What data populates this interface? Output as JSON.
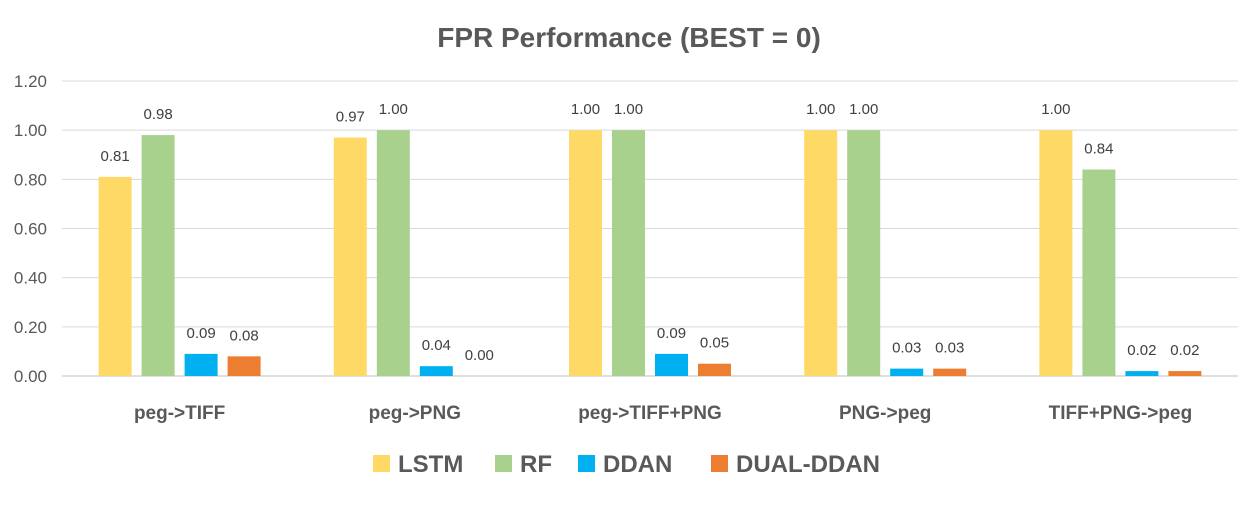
{
  "chart_data": {
    "type": "bar",
    "title": "FPR Performance (BEST = 0)",
    "xlabel": "",
    "ylabel": "",
    "ylim": [
      0,
      1.2
    ],
    "yticks": [
      "0.00",
      "0.20",
      "0.40",
      "0.60",
      "0.80",
      "1.00",
      "1.20"
    ],
    "grid": true,
    "legend_position": "bottom",
    "categories": [
      "peg->TIFF",
      "peg->PNG",
      "peg->TIFF+PNG",
      "PNG->peg",
      "TIFF+PNG->peg"
    ],
    "series": [
      {
        "name": "LSTM",
        "color": "#FFD966",
        "values": [
          0.81,
          0.97,
          1.0,
          1.0,
          1.0
        ],
        "labels": [
          "0.81",
          "0.97",
          "1.00",
          "1.00",
          "1.00"
        ]
      },
      {
        "name": "RF",
        "color": "#A9D18E",
        "values": [
          0.98,
          1.0,
          1.0,
          1.0,
          0.84
        ],
        "labels": [
          "0.98",
          "1.00",
          "1.00",
          "1.00",
          "0.84"
        ]
      },
      {
        "name": "DDAN",
        "color": "#00B0F0",
        "values": [
          0.09,
          0.04,
          0.09,
          0.03,
          0.02
        ],
        "labels": [
          "0.09",
          "0.04",
          "0.09",
          "0.03",
          "0.02"
        ]
      },
      {
        "name": "DUAL-DDAN",
        "color": "#ED7D31",
        "values": [
          0.08,
          0.0,
          0.05,
          0.03,
          0.02
        ],
        "labels": [
          "0.08",
          "0.00",
          "0.05",
          "0.03",
          "0.02"
        ]
      }
    ]
  }
}
